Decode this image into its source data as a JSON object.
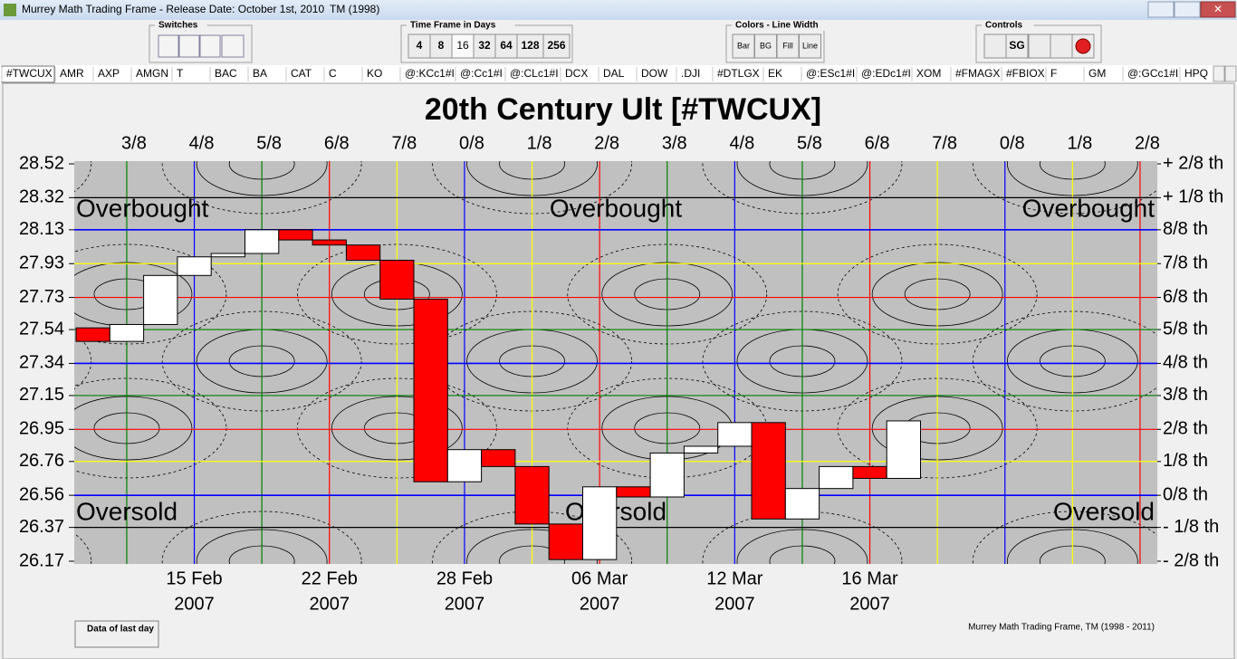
{
  "window": {
    "title": "Murrey Math Trading Frame - Release Date: October 1st, 2010",
    "tm": "TM (1998)"
  },
  "toolbar": {
    "switches": {
      "label": "Switches"
    },
    "timeframe": {
      "label": "Time Frame in Days",
      "buttons": [
        "4",
        "8",
        "16",
        "32",
        "64",
        "128",
        "256"
      ]
    },
    "colors": {
      "label": "Colors - Line Width",
      "buttons": [
        "Bar",
        "BG",
        "Fill",
        "Line"
      ]
    },
    "controls": {
      "label": "Controls",
      "buttons": [
        "SG"
      ]
    }
  },
  "tabs": [
    "#TWCUX",
    "AMR",
    "AXP",
    "AMGN",
    "T",
    "BAC",
    "BA",
    "CAT",
    "C",
    "KO",
    "@:KCc1#I",
    "@:Cc1#I",
    "@:CLc1#I",
    "DCX",
    "DAL",
    "DOW",
    ".DJI",
    "#DTLGX",
    "EK",
    "@:ESc1#I",
    "@:EDc1#I",
    "XOM",
    "#FMAGX",
    "#FBIOX",
    "F",
    "GM",
    "@:GCc1#I",
    "HPQ"
  ],
  "chart_data": {
    "type": "candlestick",
    "title": "20th Century Ult [#TWCUX]",
    "categories": [
      null,
      null,
      null,
      "15 Feb",
      null,
      null,
      null,
      "22 Feb",
      null,
      null,
      null,
      "28 Feb",
      null,
      null,
      null,
      "06 Mar",
      null,
      null,
      null,
      "12 Mar",
      null,
      null,
      null,
      "16 Mar",
      null
    ],
    "category_years": [
      null,
      null,
      null,
      "2007",
      null,
      null,
      null,
      "2007",
      null,
      null,
      null,
      "2007",
      null,
      null,
      null,
      "2007",
      null,
      null,
      null,
      "2007",
      null,
      null,
      null,
      "2007",
      null
    ],
    "open": [
      27.55,
      27.47,
      27.57,
      27.86,
      27.97,
      27.99,
      28.13,
      28.07,
      28.04,
      27.95,
      27.72,
      26.64,
      26.83,
      26.73,
      26.39,
      26.18,
      26.61,
      26.55,
      26.81,
      26.85,
      26.99,
      26.42,
      26.6,
      26.73,
      26.66
    ],
    "close": [
      27.47,
      27.57,
      27.86,
      27.97,
      27.99,
      28.13,
      28.07,
      28.04,
      27.95,
      27.72,
      26.64,
      26.83,
      26.73,
      26.39,
      26.18,
      26.61,
      26.55,
      26.81,
      26.85,
      26.99,
      26.42,
      26.6,
      26.73,
      26.66,
      27.0
    ],
    "up_color": "#ffffff",
    "down_color": "#ff0000",
    "background": "#c0c0c0",
    "ylim": [
      26.17,
      28.52
    ],
    "yticks": [
      28.52,
      28.32,
      28.13,
      27.93,
      27.73,
      27.54,
      27.34,
      27.15,
      26.95,
      26.76,
      26.56,
      26.37,
      26.17
    ],
    "grid_colors": [
      null,
      "#000000",
      "#0000ff",
      "#ffff00",
      "#ff0000",
      "#008000",
      "#0000ff",
      "#008000",
      "#ff0000",
      "#ffff00",
      "#0000ff",
      "#000000",
      null
    ],
    "y2lim": [
      26.17,
      28.52
    ],
    "y2ticks": [
      {
        "value": 28.52,
        "label": "+ 2/8 th"
      },
      {
        "value": 28.32,
        "label": "+ 1/8 th"
      },
      {
        "value": 28.13,
        "label": "8/8 th"
      },
      {
        "value": 27.93,
        "label": "7/8 th"
      },
      {
        "value": 27.73,
        "label": "6/8 th"
      },
      {
        "value": 27.54,
        "label": "5/8 th"
      },
      {
        "value": 27.34,
        "label": "4/8 th"
      },
      {
        "value": 27.15,
        "label": "3/8 th"
      },
      {
        "value": 26.95,
        "label": "2/8 th"
      },
      {
        "value": 26.76,
        "label": "1/8 th"
      },
      {
        "value": 26.56,
        "label": "0/8 th"
      },
      {
        "value": 26.37,
        "label": "- 1/8 th"
      },
      {
        "value": 26.17,
        "label": "- 2/8 th"
      }
    ],
    "time_fractions": [
      "3/8",
      "4/8",
      "5/8",
      "6/8",
      "7/8",
      "0/8",
      "1/8",
      "2/8",
      "3/8",
      "4/8",
      "5/8",
      "6/8",
      "7/8",
      "0/8",
      "1/8",
      "2/8"
    ],
    "vertical_line_colors": [
      "#008000",
      "#0000ff",
      "#008000",
      "#ff0000",
      "#ffff00",
      "#0000ff",
      "#ffff00",
      "#ff0000",
      "#008000",
      "#0000ff",
      "#008000",
      "#ff0000",
      "#ffff00",
      "#0000ff",
      "#ffff00",
      "#ff0000"
    ],
    "annotations": [
      "Overbought",
      "Overbought",
      "Overbought",
      "Oversold",
      "Oversold",
      "Oversold"
    ]
  },
  "footer": {
    "button": "Data of last day",
    "credit": "Murrey Math Trading Frame, TM (1998 - 2011)"
  }
}
